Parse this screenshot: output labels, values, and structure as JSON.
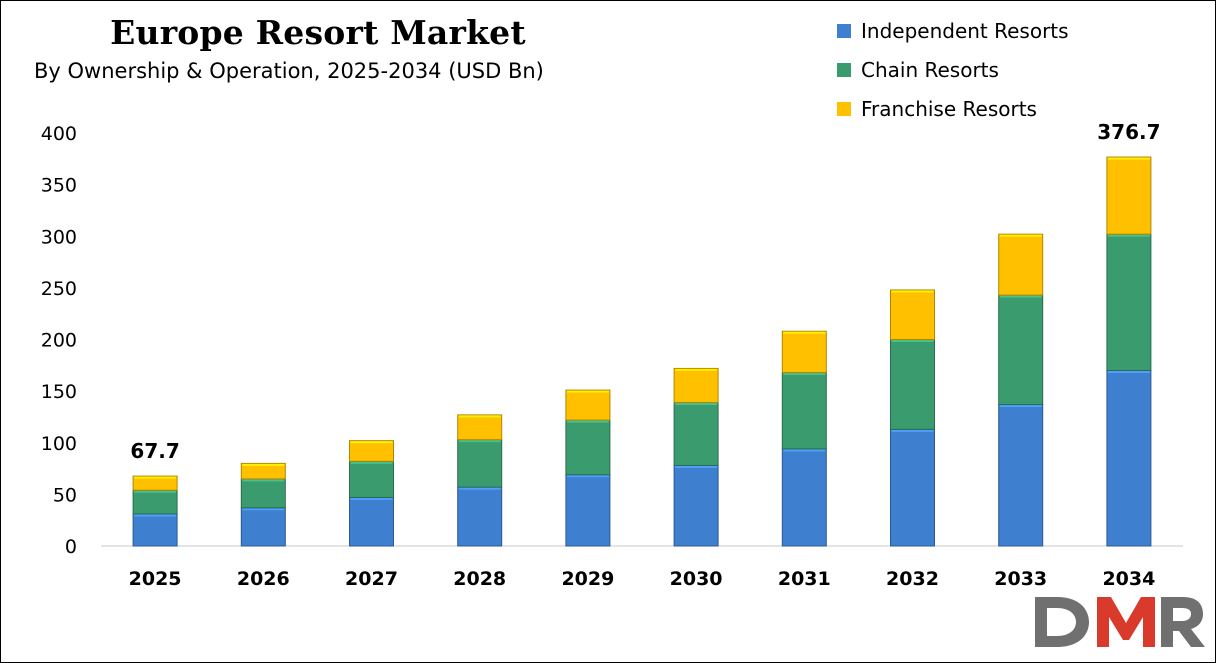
{
  "chart_data": {
    "type": "bar",
    "stacked": true,
    "title": "Europe Resort Market",
    "subtitle": "By Ownership & Operation, 2025-2034 (USD Bn)",
    "categories": [
      "2025",
      "2026",
      "2027",
      "2028",
      "2029",
      "2030",
      "2031",
      "2032",
      "2033",
      "2034"
    ],
    "series": [
      {
        "name": "Independent Resorts",
        "color": "#3f7fcf",
        "values": [
          31,
          37,
          47,
          57,
          69,
          78,
          94,
          113,
          137,
          170
        ]
      },
      {
        "name": "Chain Resorts",
        "color": "#3a9b6e",
        "values": [
          23,
          28,
          35,
          46,
          53,
          61,
          74,
          87,
          106,
          132
        ]
      },
      {
        "name": "Franchise Resorts",
        "color": "#ffc000",
        "values": [
          13.7,
          15,
          20,
          24,
          29,
          33,
          40,
          48,
          59,
          74.7
        ]
      }
    ],
    "data_labels": [
      {
        "category": "2025",
        "text": "67.7"
      },
      {
        "category": "2034",
        "text": "376.7"
      }
    ],
    "ylim": [
      0,
      400
    ],
    "yticks": [
      "0",
      "50",
      "100",
      "150",
      "200",
      "250",
      "300",
      "350",
      "400"
    ],
    "grid": false,
    "legend_position": "top-right",
    "xlabel": "",
    "ylabel": ""
  },
  "logo_text": "DMR"
}
